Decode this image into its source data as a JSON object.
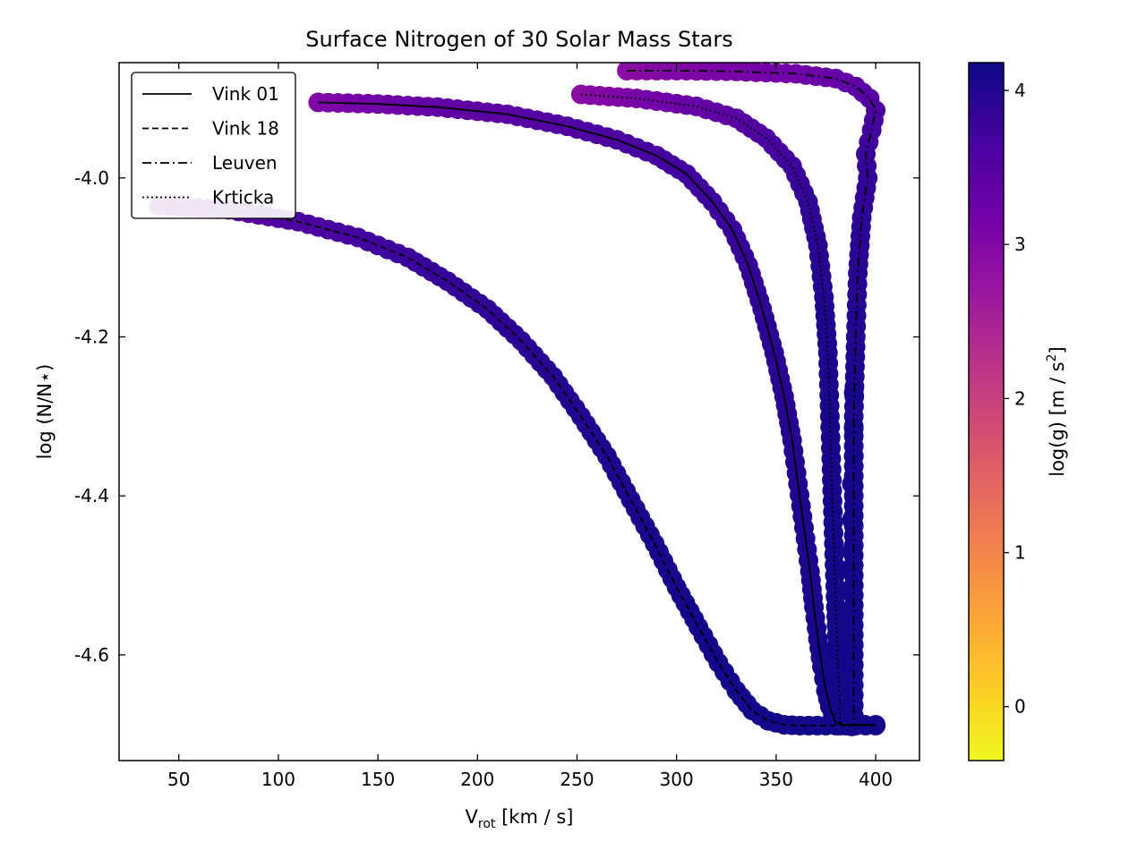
{
  "chart_data": {
    "type": "scatter",
    "title": "Surface Nitrogen of 30 Solar Mass Stars",
    "xlabel": "V",
    "xlabel_sub": "rot",
    "xlabel_unit": " [km / s]",
    "ylabel": "log (N/N⋆)",
    "xlim": [
      20,
      422
    ],
    "ylim": [
      -4.733,
      -3.855
    ],
    "xticks": [
      50,
      100,
      150,
      200,
      250,
      300,
      350,
      400
    ],
    "yticks": [
      -4.0,
      -4.2,
      -4.4,
      -4.6
    ],
    "ytick_labels": [
      "-4.0",
      "-4.2",
      "-4.4",
      "-4.6"
    ],
    "grid": false,
    "legend_position": "upper-left",
    "colorbar": {
      "label": "log(g) [m / s",
      "label_sup": "2",
      "label_end": "]",
      "range": [
        -0.35,
        4.18
      ],
      "ticks": [
        0,
        1,
        2,
        3,
        4
      ],
      "colormap": "plasma",
      "stops": [
        "#f0f921",
        "#fdca26",
        "#fb9f3a",
        "#ed7953",
        "#d8576b",
        "#bd3786",
        "#9c179e",
        "#7201a8",
        "#46039f",
        "#0d0887"
      ]
    },
    "series": [
      {
        "name": "Vink 01",
        "linestyle": "solid",
        "x": [
          120,
          150,
          180,
          215,
          245,
          270,
          290,
          305,
          318,
          328,
          336,
          343,
          349,
          354,
          358,
          361,
          364,
          367,
          369,
          371,
          373,
          375,
          377,
          380,
          384,
          400
        ],
        "y": [
          -3.905,
          -3.907,
          -3.911,
          -3.92,
          -3.935,
          -3.952,
          -3.972,
          -3.995,
          -4.03,
          -4.065,
          -4.11,
          -4.165,
          -4.22,
          -4.275,
          -4.33,
          -4.385,
          -4.44,
          -4.495,
          -4.54,
          -4.58,
          -4.615,
          -4.645,
          -4.665,
          -4.685,
          -4.688,
          -4.688
        ],
        "logg": [
          3.0,
          3.2,
          3.35,
          3.45,
          3.55,
          3.62,
          3.68,
          3.72,
          3.76,
          3.8,
          3.84,
          3.88,
          3.92,
          3.95,
          3.98,
          4.0,
          4.02,
          4.05,
          4.07,
          4.09,
          4.1,
          4.11,
          4.12,
          4.13,
          4.13,
          4.14
        ]
      },
      {
        "name": "Vink 18",
        "linestyle": "dashed",
        "x": [
          40,
          75,
          110,
          140,
          165,
          185,
          205,
          222,
          238,
          252,
          265,
          277,
          289,
          300,
          311,
          321,
          330,
          338,
          346,
          354,
          362,
          375,
          390,
          400
        ],
        "y": [
          -4.035,
          -4.04,
          -4.055,
          -4.075,
          -4.1,
          -4.13,
          -4.165,
          -4.205,
          -4.25,
          -4.3,
          -4.35,
          -4.405,
          -4.46,
          -4.515,
          -4.565,
          -4.61,
          -4.645,
          -4.67,
          -4.683,
          -4.688,
          -4.689,
          -4.689,
          -4.689,
          -4.689
        ],
        "logg": [
          3.0,
          3.4,
          3.6,
          3.7,
          3.77,
          3.83,
          3.88,
          3.93,
          3.97,
          4.0,
          4.03,
          4.06,
          4.08,
          4.1,
          4.11,
          4.12,
          4.13,
          4.13,
          4.13,
          4.14,
          4.14,
          4.14,
          4.14,
          4.14
        ]
      },
      {
        "name": "Leuven",
        "linestyle": "dashdot",
        "x": [
          275,
          300,
          330,
          360,
          380,
          390,
          397,
          400,
          398,
          395,
          396,
          393,
          391,
          390,
          389,
          389,
          389,
          389
        ],
        "y": [
          -3.865,
          -3.865,
          -3.866,
          -3.869,
          -3.875,
          -3.885,
          -3.9,
          -3.915,
          -3.94,
          -3.97,
          -4.0,
          -4.05,
          -4.12,
          -4.2,
          -4.3,
          -4.45,
          -4.6,
          -4.689
        ],
        "logg": [
          2.9,
          3.0,
          3.1,
          3.2,
          3.3,
          3.4,
          3.5,
          3.6,
          3.7,
          3.8,
          3.85,
          3.9,
          3.95,
          4.0,
          4.05,
          4.1,
          4.12,
          4.14
        ],
        "scatter": [
          [
            388,
            -4.69
          ],
          [
            388,
            -4.66
          ],
          [
            388,
            -4.62
          ],
          [
            388,
            -4.59
          ],
          [
            388,
            -4.555
          ],
          [
            388,
            -4.52
          ],
          [
            388,
            -4.49
          ],
          [
            388,
            -4.47
          ],
          [
            388,
            -4.43
          ],
          [
            388,
            -4.385
          ],
          [
            389,
            -4.35
          ],
          [
            389,
            -4.315
          ],
          [
            389,
            -4.27
          ]
        ]
      },
      {
        "name": "Krticka",
        "linestyle": "dotted",
        "x": [
          252,
          280,
          310,
          330,
          345,
          358,
          366,
          371,
          374,
          376,
          377,
          378,
          379,
          380,
          381,
          382,
          382
        ],
        "y": [
          -3.895,
          -3.9,
          -3.91,
          -3.925,
          -3.95,
          -3.985,
          -4.03,
          -4.085,
          -4.15,
          -4.22,
          -4.3,
          -4.38,
          -4.46,
          -4.54,
          -4.61,
          -4.66,
          -4.689
        ],
        "logg": [
          2.9,
          3.1,
          3.3,
          3.45,
          3.6,
          3.75,
          3.85,
          3.95,
          4.0,
          4.05,
          4.08,
          4.1,
          4.11,
          4.12,
          4.13,
          4.13,
          4.14
        ]
      }
    ]
  }
}
